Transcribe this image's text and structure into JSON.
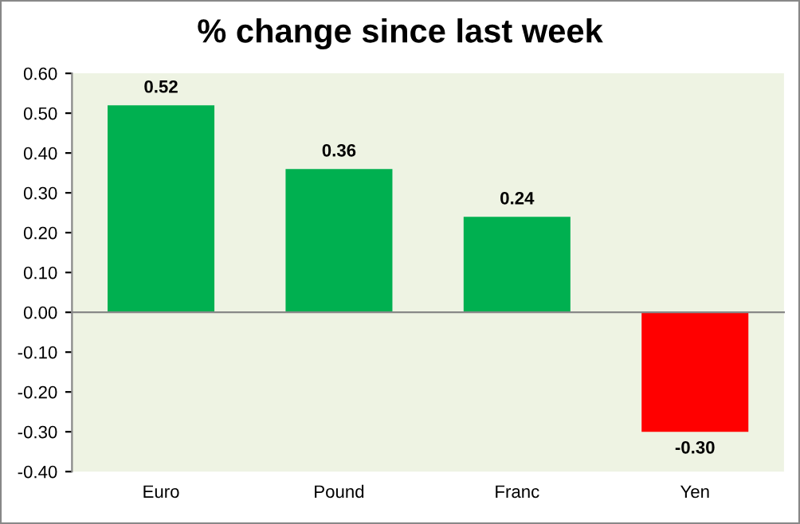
{
  "chart_data": {
    "type": "bar",
    "title": "% change since last week",
    "categories": [
      "Euro",
      "Pound",
      "Franc",
      "Yen"
    ],
    "values": [
      0.52,
      0.36,
      0.24,
      -0.3
    ],
    "colors": [
      "#00b050",
      "#00b050",
      "#00b050",
      "#ff0000"
    ],
    "value_labels": [
      "0.52",
      "0.36",
      "0.24",
      "-0.30"
    ],
    "ylim": [
      -0.4,
      0.6
    ],
    "yticks": [
      {
        "value": 0.6,
        "label": "0.60"
      },
      {
        "value": 0.5,
        "label": "0.50"
      },
      {
        "value": 0.4,
        "label": "0.40"
      },
      {
        "value": 0.3,
        "label": "0.30"
      },
      {
        "value": 0.2,
        "label": "0.20"
      },
      {
        "value": 0.1,
        "label": "0.10"
      },
      {
        "value": 0.0,
        "label": "0.00"
      },
      {
        "value": -0.1,
        "label": "-0.10"
      },
      {
        "value": -0.2,
        "label": "-0.20"
      },
      {
        "value": -0.3,
        "label": "-0.30"
      },
      {
        "value": -0.4,
        "label": "-0.40"
      }
    ],
    "legend": false
  }
}
